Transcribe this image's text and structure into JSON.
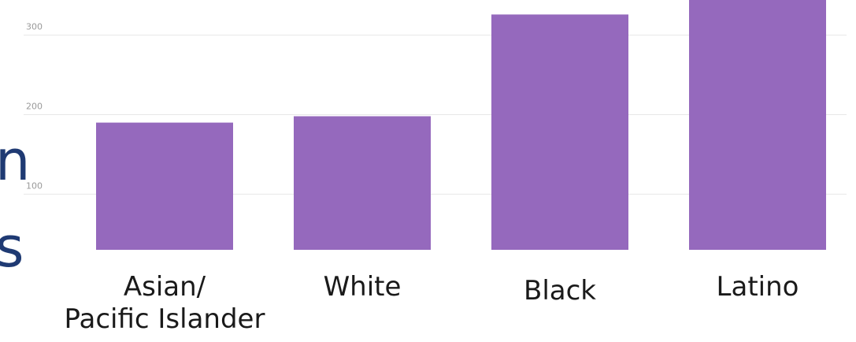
{
  "slide_text": {
    "fragment_1": "n",
    "fragment_2": "s"
  },
  "chart_data": {
    "type": "bar",
    "categories": [
      "Asian/\nPacific Islander",
      "White",
      "Black",
      "Latino"
    ],
    "values": [
      190,
      198,
      326,
      362
    ],
    "yticks": [
      100,
      200,
      300
    ],
    "ylim": [
      30,
      370
    ],
    "grid": true,
    "bar_color": "#9569bd",
    "title": "",
    "xlabel": "",
    "ylabel": ""
  }
}
